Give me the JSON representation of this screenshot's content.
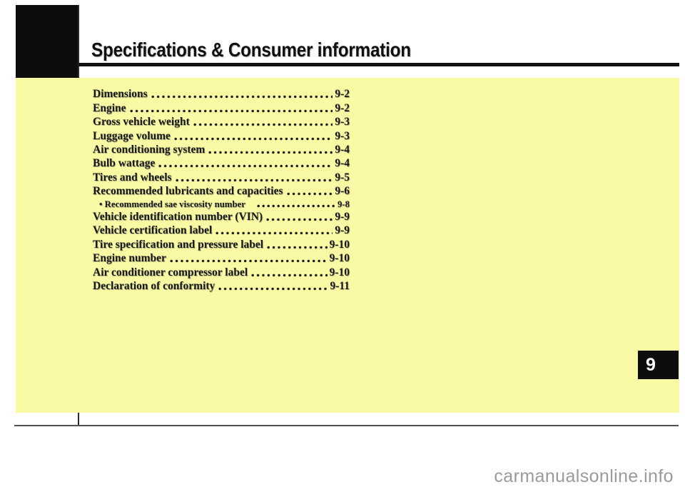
{
  "page": {
    "title": "Specifications & Consumer information",
    "chapter_number": "9",
    "watermark": "carmanualsonline.info"
  },
  "colors": {
    "panel_highlight_yellow": "#fbfaa4",
    "ink_black": "#0d0d0d",
    "watermark_gray": "#9a9a9a"
  },
  "toc": {
    "items": [
      {
        "label": "Dimensions",
        "page": "9-2",
        "sub": false
      },
      {
        "label": "Engine",
        "page": "9-2",
        "sub": false
      },
      {
        "label": "Gross vehicle weight",
        "page": "9-3",
        "sub": false
      },
      {
        "label": "Luggage volume",
        "page": "9-3",
        "sub": false
      },
      {
        "label": "Air conditioning system",
        "page": "9-4",
        "sub": false
      },
      {
        "label": "Bulb wattage",
        "page": "9-4",
        "sub": false
      },
      {
        "label": "Tires and wheels",
        "page": "9-5",
        "sub": false
      },
      {
        "label": "Recommended lubricants and capacities",
        "page": "9-6",
        "sub": false
      },
      {
        "label": "• Recommended sae viscosity number",
        "page": "9-8",
        "sub": true
      },
      {
        "label": "Vehicle identification number (VIN)",
        "page": "9-9",
        "sub": false
      },
      {
        "label": "Vehicle certification label",
        "page": "9-9",
        "sub": false
      },
      {
        "label": "Tire specification and pressure label",
        "page": "9-10",
        "sub": false
      },
      {
        "label": "Engine number",
        "page": "9-10",
        "sub": false
      },
      {
        "label": "Air conditioner compressor label",
        "page": "9-10",
        "sub": false
      },
      {
        "label": "Declaration of conformity",
        "page": "9-11",
        "sub": false
      }
    ]
  }
}
